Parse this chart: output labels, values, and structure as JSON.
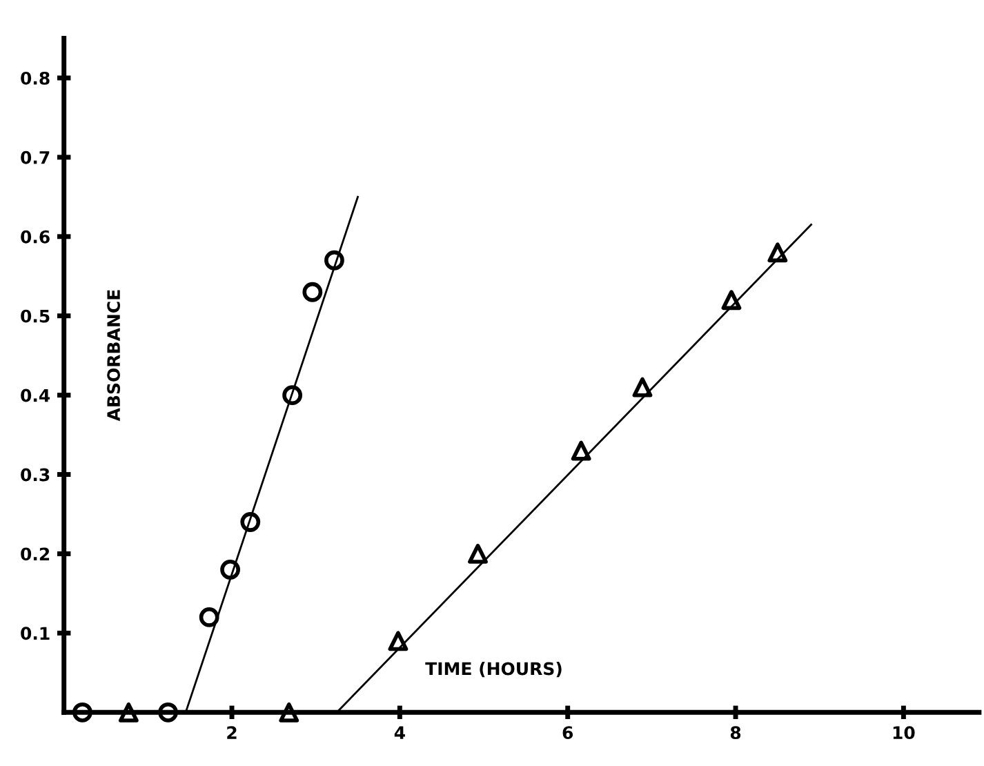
{
  "chart_data": {
    "type": "scatter",
    "xlabel": "TIME (HOURS)",
    "ylabel": "ABSORBANCE",
    "xlim": [
      0,
      10.9
    ],
    "ylim": [
      0,
      0.85
    ],
    "xticks": [
      2,
      4,
      6,
      8,
      10
    ],
    "yticks": [
      0.1,
      0.2,
      0.3,
      0.4,
      0.5,
      0.6,
      0.7,
      0.8
    ],
    "grid": false,
    "legend": false,
    "series": [
      {
        "marker": "circle",
        "color": "#000000",
        "x": [
          0.22,
          1.24,
          1.73,
          1.98,
          2.22,
          2.72,
          2.96,
          3.22
        ],
        "values": [
          0,
          0,
          0.12,
          0.18,
          0.24,
          0.4,
          0.53,
          0.57
        ]
      },
      {
        "marker": "triangle",
        "color": "#000000",
        "x": [
          0.77,
          2.68,
          3.98,
          4.93,
          6.16,
          6.89,
          7.95,
          8.5
        ],
        "values": [
          0,
          0,
          0.09,
          0.2,
          0.33,
          0.41,
          0.52,
          0.58
        ]
      },
      {
        "type": "line",
        "marker": "none",
        "line_style": "solid",
        "color": "#000000",
        "x": [
          1.45,
          3.5
        ],
        "values": [
          0,
          0.65
        ]
      },
      {
        "type": "line",
        "marker": "none",
        "line_style": "solid",
        "color": "#000000",
        "x": [
          3.25,
          8.9
        ],
        "values": [
          0,
          0.615
        ]
      }
    ]
  }
}
